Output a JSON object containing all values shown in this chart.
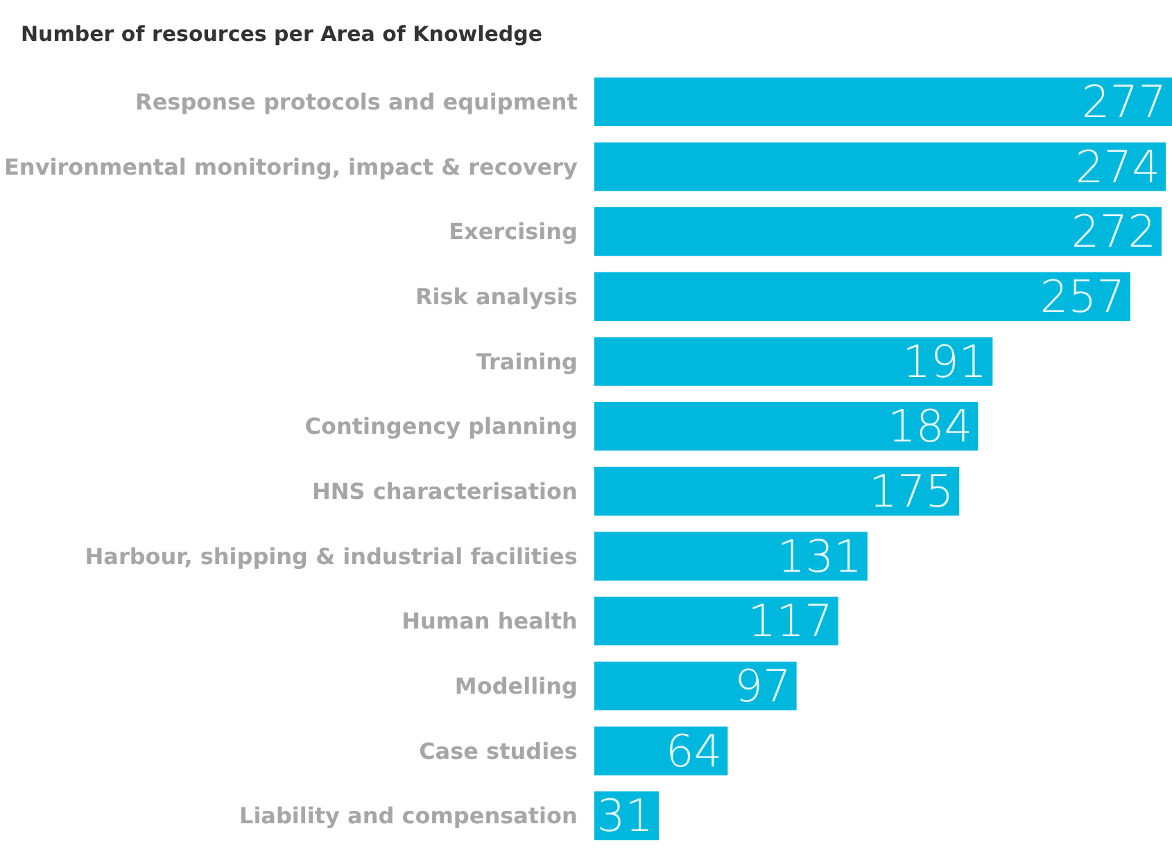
{
  "chart_data": {
    "type": "bar",
    "orientation": "horizontal",
    "title": "Number of resources per Area of Knowledge",
    "categories": [
      "Response protocols and equipment",
      "Environmental monitoring, impact & recovery",
      "Exercising",
      "Risk analysis",
      "Training",
      "Contingency planning",
      "HNS characterisation",
      "Harbour, shipping & industrial facilities",
      "Human health",
      "Modelling",
      "Case studies",
      "Liability and compensation"
    ],
    "values": [
      277,
      274,
      272,
      257,
      191,
      184,
      175,
      131,
      117,
      97,
      64,
      31
    ],
    "color": "#00b8de",
    "data_labels": true
  }
}
